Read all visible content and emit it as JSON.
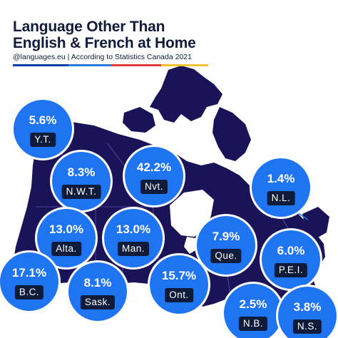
{
  "title": {
    "line1": "Language Other Than",
    "line2": "English & French at Home"
  },
  "subtitle": "@languages.eu | According to Statistics Canada 2021",
  "colors": {
    "land": "#1b1358",
    "water": "#ffffff",
    "bubble": "#1f74f2",
    "tag": "#0f1b3a",
    "stripe": [
      "#0a3ea8",
      "#2a7be0",
      "#e23a3a",
      "#f2c230"
    ]
  },
  "regions": [
    {
      "id": "yt",
      "value": "5.6%",
      "abbr": "Y.T."
    },
    {
      "id": "nwt",
      "value": "8.3%",
      "abbr": "N.W.T."
    },
    {
      "id": "nvt",
      "value": "42.2%",
      "abbr": "Nvt."
    },
    {
      "id": "nl",
      "value": "1.4%",
      "abbr": "N.L."
    },
    {
      "id": "alta",
      "value": "13.0%",
      "abbr": "Alta."
    },
    {
      "id": "man",
      "value": "13.0%",
      "abbr": "Man."
    },
    {
      "id": "que",
      "value": "7.9%",
      "abbr": "Que."
    },
    {
      "id": "pei",
      "value": "6.0%",
      "abbr": "P.E.I."
    },
    {
      "id": "bc",
      "value": "17.1%",
      "abbr": "B.C."
    },
    {
      "id": "sask",
      "value": "8.1%",
      "abbr": "Sask."
    },
    {
      "id": "ont",
      "value": "15.7%",
      "abbr": "Ont."
    },
    {
      "id": "nb",
      "value": "2.5%",
      "abbr": "N.B."
    },
    {
      "id": "ns",
      "value": "3.8%",
      "abbr": "N.S."
    }
  ]
}
